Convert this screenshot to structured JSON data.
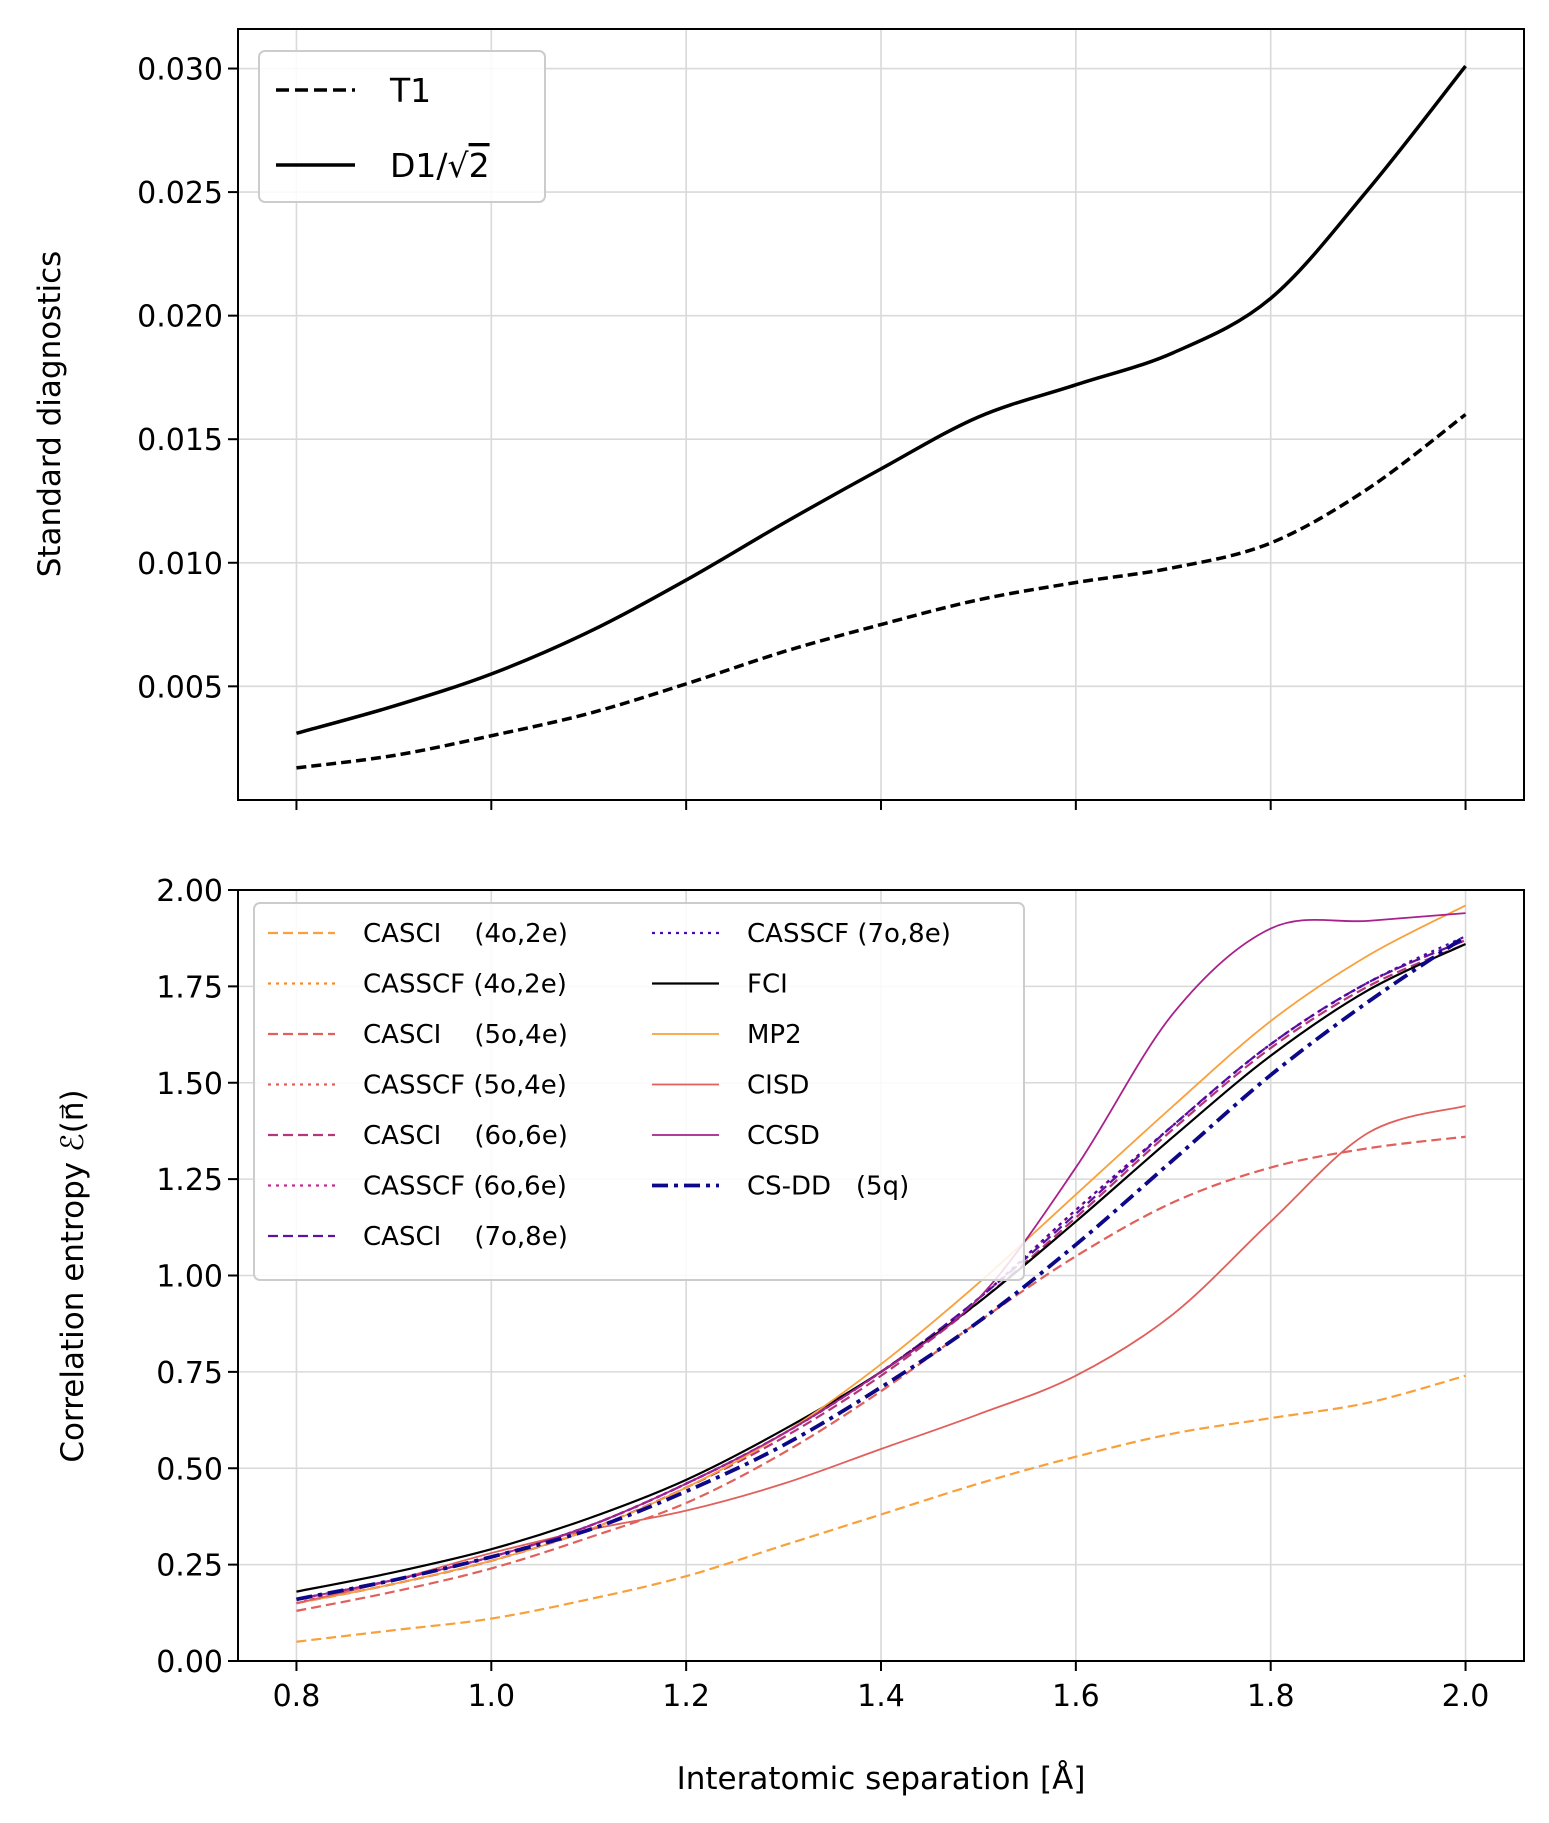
{
  "chart_data": [
    {
      "type": "line",
      "title": "",
      "xlabel": "",
      "ylabel": "Standard diagnostics",
      "xlim": [
        0.74,
        2.06
      ],
      "ylim": [
        0.0004,
        0.0316
      ],
      "xticks": [
        0.8,
        1.0,
        1.2,
        1.4,
        1.6,
        1.8,
        2.0
      ],
      "yticks": [
        0.005,
        0.01,
        0.015,
        0.02,
        0.025,
        0.03
      ],
      "ytick_labels": [
        "0.005",
        "0.010",
        "0.015",
        "0.020",
        "0.025",
        "0.030"
      ],
      "grid": true,
      "legend_position": "upper-left",
      "x": [
        0.8,
        0.9,
        1.0,
        1.1,
        1.2,
        1.3,
        1.4,
        1.5,
        1.6,
        1.7,
        1.8,
        1.9,
        2.0
      ],
      "series": [
        {
          "name": "T1",
          "color": "#000000",
          "style": "dashed",
          "width": 3.5,
          "values": [
            0.0017,
            0.0022,
            0.003,
            0.0039,
            0.0051,
            0.0064,
            0.0075,
            0.0085,
            0.0092,
            0.0098,
            0.0108,
            0.013,
            0.016
          ]
        },
        {
          "name": "D1/√2",
          "color": "#000000",
          "style": "solid",
          "width": 3.5,
          "values": [
            0.0031,
            0.0042,
            0.0055,
            0.0072,
            0.0093,
            0.0116,
            0.0138,
            0.0159,
            0.0172,
            0.0185,
            0.0207,
            0.0251,
            0.0301
          ]
        }
      ]
    },
    {
      "type": "line",
      "title": "",
      "xlabel": "Interatomic separation [Å]",
      "ylabel": "Correlation entropy ℰ(n⃗)",
      "xlim": [
        0.74,
        2.06
      ],
      "ylim": [
        0.0,
        2.0
      ],
      "xticks": [
        0.8,
        1.0,
        1.2,
        1.4,
        1.6,
        1.8,
        2.0
      ],
      "xtick_labels": [
        "0.8",
        "1.0",
        "1.2",
        "1.4",
        "1.6",
        "1.8",
        "2.0"
      ],
      "yticks": [
        0.0,
        0.25,
        0.5,
        0.75,
        1.0,
        1.25,
        1.5,
        1.75,
        2.0
      ],
      "ytick_labels": [
        "0.00",
        "0.25",
        "0.50",
        "0.75",
        "1.00",
        "1.25",
        "1.50",
        "1.75",
        "2.00"
      ],
      "grid": true,
      "legend_position": "upper-left",
      "legend_columns": 2,
      "x": [
        0.8,
        0.9,
        1.0,
        1.1,
        1.2,
        1.3,
        1.4,
        1.5,
        1.6,
        1.7,
        1.8,
        1.9,
        2.0
      ],
      "series": [
        {
          "name": "CASCI    (4o,2e)",
          "color": "#f9a03a",
          "style": "dashed",
          "width": 2.2,
          "values": [
            0.05,
            0.08,
            0.11,
            0.16,
            0.22,
            0.3,
            0.38,
            0.46,
            0.53,
            0.59,
            0.63,
            0.67,
            0.74
          ]
        },
        {
          "name": "CASSCF (4o,2e)",
          "color": "#f48c2a",
          "style": "dotted",
          "width": 2.2,
          "values": [
            0.15,
            0.21,
            0.27,
            0.35,
            0.46,
            0.59,
            0.75,
            0.94,
            1.17,
            1.39,
            1.6,
            1.76,
            1.87
          ]
        },
        {
          "name": "CASCI    (5o,4e)",
          "color": "#e0605c",
          "style": "dashed",
          "width": 2.2,
          "values": [
            0.13,
            0.18,
            0.24,
            0.32,
            0.41,
            0.54,
            0.7,
            0.88,
            1.05,
            1.19,
            1.28,
            1.33,
            1.36
          ]
        },
        {
          "name": "CASSCF (5o,4e)",
          "color": "#e0605c",
          "style": "dotted",
          "width": 2.2,
          "values": [
            0.15,
            0.21,
            0.27,
            0.35,
            0.46,
            0.59,
            0.75,
            0.94,
            1.17,
            1.39,
            1.6,
            1.76,
            1.87
          ]
        },
        {
          "name": "CASCI    (6o,6e)",
          "color": "#b5367a",
          "style": "dashed",
          "width": 2.2,
          "values": [
            0.15,
            0.2,
            0.26,
            0.34,
            0.45,
            0.58,
            0.74,
            0.93,
            1.15,
            1.38,
            1.59,
            1.75,
            1.86
          ]
        },
        {
          "name": "CASSCF (6o,6e)",
          "color": "#c32a95",
          "style": "dotted",
          "width": 2.2,
          "values": [
            0.15,
            0.21,
            0.27,
            0.35,
            0.46,
            0.59,
            0.75,
            0.94,
            1.17,
            1.39,
            1.6,
            1.76,
            1.87
          ]
        },
        {
          "name": "CASCI    (7o,8e)",
          "color": "#5a14a0",
          "style": "dashed",
          "width": 2.2,
          "values": [
            0.16,
            0.21,
            0.27,
            0.35,
            0.46,
            0.59,
            0.75,
            0.94,
            1.16,
            1.39,
            1.6,
            1.76,
            1.87
          ]
        },
        {
          "name": "CASSCF (7o,8e)",
          "color": "#4a0aa8",
          "style": "dotted",
          "width": 2.2,
          "values": [
            0.16,
            0.21,
            0.27,
            0.35,
            0.46,
            0.59,
            0.75,
            0.94,
            1.17,
            1.39,
            1.6,
            1.76,
            1.88
          ]
        },
        {
          "name": "FCI",
          "color": "#000000",
          "style": "solid",
          "width": 2.2,
          "values": [
            0.18,
            0.23,
            0.29,
            0.37,
            0.47,
            0.6,
            0.75,
            0.93,
            1.14,
            1.36,
            1.57,
            1.74,
            1.86
          ]
        },
        {
          "name": "MP2",
          "color": "#f9a03a",
          "style": "solid",
          "width": 1.8,
          "values": [
            0.15,
            0.2,
            0.26,
            0.34,
            0.45,
            0.59,
            0.77,
            0.98,
            1.21,
            1.44,
            1.66,
            1.83,
            1.96
          ]
        },
        {
          "name": "CISD",
          "color": "#e0605c",
          "style": "solid",
          "width": 1.8,
          "values": [
            0.15,
            0.21,
            0.28,
            0.34,
            0.39,
            0.46,
            0.55,
            0.64,
            0.74,
            0.9,
            1.14,
            1.37,
            1.44
          ]
        },
        {
          "name": "CCSD",
          "color": "#a8218c",
          "style": "solid",
          "width": 1.8,
          "values": [
            0.16,
            0.21,
            0.27,
            0.35,
            0.46,
            0.59,
            0.75,
            0.94,
            1.28,
            1.68,
            1.9,
            1.92,
            1.94
          ]
        },
        {
          "name": "CS-DD   (5q)",
          "color": "#0d0887",
          "style": "dashdot",
          "width": 3.8,
          "values": [
            0.16,
            0.21,
            0.27,
            0.34,
            0.44,
            0.56,
            0.71,
            0.88,
            1.08,
            1.3,
            1.52,
            1.71,
            1.88
          ]
        }
      ]
    }
  ]
}
